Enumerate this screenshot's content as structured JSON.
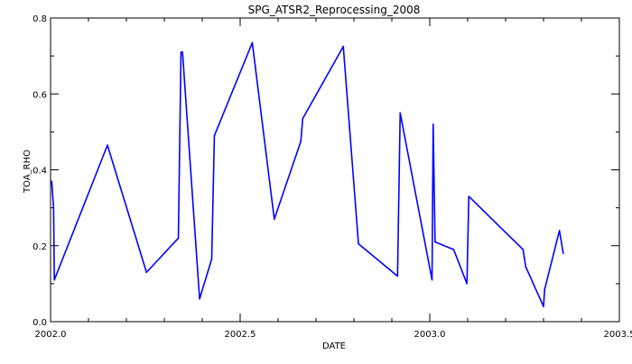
{
  "colors": {
    "background": "#ffffff",
    "axis": "#000000",
    "series": "#0000ff"
  },
  "chart_data": {
    "type": "line",
    "title": "SPG_ATSR2_Reprocessing_2008",
    "xlabel": "DATE",
    "ylabel": "TOA_RHO",
    "xlim": [
      2002.0,
      2003.5
    ],
    "ylim": [
      0.0,
      0.8
    ],
    "grid": false,
    "x_ticks": [
      {
        "value": 2002.0,
        "label": "2002.0"
      },
      {
        "value": 2002.5,
        "label": "2002.5"
      },
      {
        "value": 2003.0,
        "label": "2003.0"
      },
      {
        "value": 2003.5,
        "label": "2003.5"
      }
    ],
    "y_ticks": [
      {
        "value": 0.0,
        "label": "0.0"
      },
      {
        "value": 0.2,
        "label": "0.2"
      },
      {
        "value": 0.4,
        "label": "0.4"
      },
      {
        "value": 0.6,
        "label": "0.6"
      },
      {
        "value": 0.8,
        "label": "0.8"
      }
    ],
    "x_minor_step": 0.1,
    "y_minor_step": 0.1,
    "series": [
      {
        "color": "#0000ff",
        "points": [
          [
            2002.003,
            0.37
          ],
          [
            2002.008,
            0.3
          ],
          [
            2002.01,
            0.11
          ],
          [
            2002.15,
            0.465
          ],
          [
            2002.253,
            0.13
          ],
          [
            2002.337,
            0.22
          ],
          [
            2002.344,
            0.71
          ],
          [
            2002.348,
            0.71
          ],
          [
            2002.393,
            0.06
          ],
          [
            2002.425,
            0.165
          ],
          [
            2002.432,
            0.49
          ],
          [
            2002.532,
            0.735
          ],
          [
            2002.59,
            0.27
          ],
          [
            2002.66,
            0.475
          ],
          [
            2002.665,
            0.535
          ],
          [
            2002.772,
            0.725
          ],
          [
            2002.812,
            0.205
          ],
          [
            2002.915,
            0.12
          ],
          [
            2002.922,
            0.55
          ],
          [
            2003.006,
            0.11
          ],
          [
            2003.009,
            0.52
          ],
          [
            2003.014,
            0.21
          ],
          [
            2003.063,
            0.19
          ],
          [
            2003.098,
            0.1
          ],
          [
            2003.103,
            0.33
          ],
          [
            2003.246,
            0.19
          ],
          [
            2003.253,
            0.145
          ],
          [
            2003.3,
            0.04
          ],
          [
            2003.303,
            0.085
          ],
          [
            2003.342,
            0.24
          ],
          [
            2003.352,
            0.18
          ]
        ]
      }
    ]
  }
}
